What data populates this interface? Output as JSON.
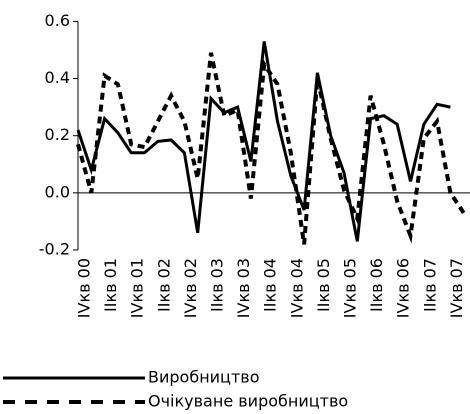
{
  "chart_data": {
    "type": "line",
    "categories": [
      "IVкв 00",
      null,
      "IIкв 01",
      null,
      "IVкв 01",
      null,
      "IIкв 02",
      null,
      "IVкв 02",
      null,
      "IIкв 03",
      null,
      "IVкв 03",
      null,
      "IIкв 04",
      null,
      "IVкв 04",
      null,
      "IIкв 05",
      null,
      "IVкв 05",
      null,
      "IIкв 06",
      null,
      "IVкв 06",
      null,
      "IIкв 07",
      null,
      "IVкв 07",
      null
    ],
    "series": [
      {
        "name": "Виробництво",
        "color": "#000000",
        "dash": false,
        "values": [
          0.22,
          0.08,
          0.26,
          0.21,
          0.14,
          0.14,
          0.18,
          0.185,
          0.14,
          -0.14,
          0.33,
          0.28,
          0.3,
          0.11,
          0.53,
          0.25,
          0.06,
          -0.06,
          0.42,
          0.2,
          0.07,
          -0.17,
          0.26,
          0.27,
          0.24,
          0.04,
          0.24,
          0.31,
          0.3,
          null
        ]
      },
      {
        "name": "Очікуване виробництво",
        "color": "#000000",
        "dash": true,
        "values": [
          0.17,
          0.0,
          0.41,
          0.38,
          0.17,
          0.16,
          0.25,
          0.34,
          0.25,
          0.05,
          0.49,
          0.27,
          0.29,
          -0.02,
          0.45,
          0.38,
          0.14,
          -0.18,
          0.4,
          0.19,
          0.01,
          -0.09,
          0.34,
          0.17,
          -0.03,
          -0.15,
          0.19,
          0.25,
          0.0,
          -0.07
        ]
      }
    ],
    "ylim": [
      -0.2,
      0.6
    ],
    "yticks": [
      -0.2,
      {
        "value": 0,
        "label": "0.0"
      },
      0.2,
      0.4,
      0.6
    ]
  }
}
